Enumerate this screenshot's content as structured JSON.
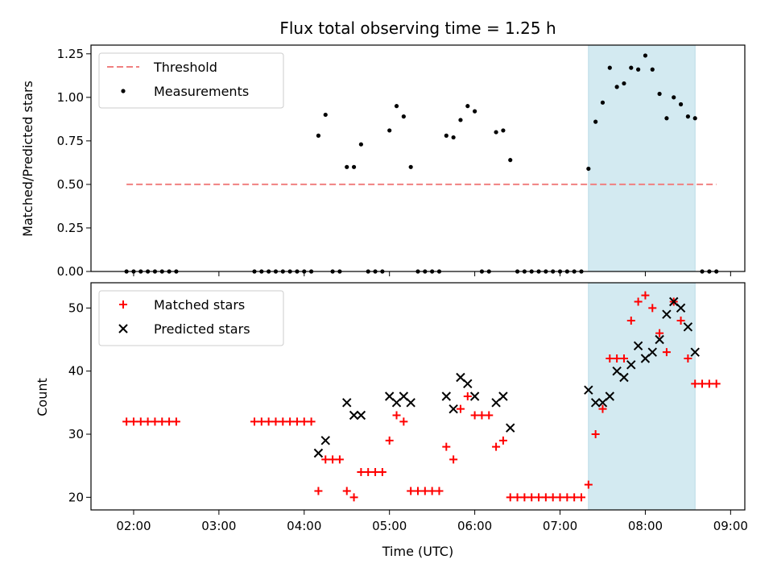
{
  "chart_data": [
    {
      "type": "scatter",
      "title": "Flux total observing time = 1.25 h",
      "xlabel": "",
      "ylabel": "Matched/Predicted stars",
      "xlim": [
        "01:30",
        "09:10"
      ],
      "ylim": [
        0,
        1.3
      ],
      "yticks": [
        "0.00",
        "0.25",
        "0.50",
        "0.75",
        "1.00",
        "1.25"
      ],
      "highlight_span": {
        "start": "07:20",
        "end": "08:35",
        "color": "#d3eaf1"
      },
      "legend": {
        "location": "upper-left",
        "entries": [
          "Threshold",
          "Measurements"
        ]
      },
      "series": [
        {
          "name": "Threshold",
          "style": "dashed-line",
          "color": "#f08080",
          "x": [
            "01:55",
            "08:50"
          ],
          "y": [
            0.5,
            0.5
          ]
        },
        {
          "name": "Measurements",
          "style": "dot",
          "color": "#000000",
          "x": [
            "01:55",
            "02:00",
            "02:05",
            "02:10",
            "02:15",
            "02:20",
            "02:25",
            "02:30",
            "03:25",
            "03:30",
            "03:35",
            "03:40",
            "03:45",
            "03:50",
            "03:55",
            "04:00",
            "04:05",
            "04:10",
            "04:15",
            "04:20",
            "04:25",
            "04:30",
            "04:35",
            "04:40",
            "04:45",
            "04:50",
            "04:55",
            "05:00",
            "05:05",
            "05:10",
            "05:15",
            "05:20",
            "05:25",
            "05:30",
            "05:35",
            "05:40",
            "05:45",
            "05:50",
            "05:55",
            "06:00",
            "06:05",
            "06:10",
            "06:15",
            "06:20",
            "06:25",
            "06:30",
            "06:35",
            "06:40",
            "06:45",
            "06:50",
            "06:55",
            "07:00",
            "07:05",
            "07:10",
            "07:15",
            "07:20",
            "07:25",
            "07:30",
            "07:35",
            "07:40",
            "07:45",
            "07:50",
            "07:55",
            "08:00",
            "08:05",
            "08:10",
            "08:15",
            "08:20",
            "08:25",
            "08:30",
            "08:35",
            "08:40",
            "08:45",
            "08:50"
          ],
          "y": [
            0,
            0,
            0,
            0,
            0,
            0,
            0,
            0,
            0,
            0,
            0,
            0,
            0,
            0,
            0,
            0,
            0,
            0.78,
            0.9,
            0,
            0,
            0.6,
            0.6,
            0.73,
            0,
            0,
            0,
            0.81,
            0.95,
            0.89,
            0.6,
            0,
            0,
            0,
            0,
            0.78,
            0.77,
            0.87,
            0.95,
            0.92,
            0,
            0,
            0.8,
            0.81,
            0.64,
            0,
            0,
            0,
            0,
            0,
            0,
            0,
            0,
            0,
            0,
            0.59,
            0.86,
            0.97,
            1.17,
            1.06,
            1.08,
            1.17,
            1.16,
            1.24,
            1.16,
            1.02,
            0.88,
            1.0,
            0.96,
            0.89,
            0.88,
            0,
            0,
            0
          ]
        }
      ]
    },
    {
      "type": "scatter",
      "title": "",
      "xlabel": "Time (UTC)",
      "ylabel": "Count",
      "xticks": [
        "02:00",
        "03:00",
        "04:00",
        "05:00",
        "06:00",
        "07:00",
        "08:00",
        "09:00"
      ],
      "xlim": [
        "01:30",
        "09:10"
      ],
      "ylim": [
        18,
        54
      ],
      "yticks": [
        "20",
        "30",
        "40",
        "50"
      ],
      "highlight_span": {
        "start": "07:20",
        "end": "08:35",
        "color": "#d3eaf1"
      },
      "legend": {
        "location": "upper-left",
        "entries": [
          "Matched stars",
          "Predicted stars"
        ]
      },
      "series": [
        {
          "name": "Matched stars",
          "marker": "plus",
          "color": "#ff0000",
          "x": [
            "01:55",
            "02:00",
            "02:05",
            "02:10",
            "02:15",
            "02:20",
            "02:25",
            "02:30",
            "03:25",
            "03:30",
            "03:35",
            "03:40",
            "03:45",
            "03:50",
            "03:55",
            "04:00",
            "04:05",
            "04:10",
            "04:15",
            "04:20",
            "04:25",
            "04:30",
            "04:35",
            "04:40",
            "04:45",
            "04:50",
            "04:55",
            "05:00",
            "05:05",
            "05:10",
            "05:15",
            "05:20",
            "05:25",
            "05:30",
            "05:35",
            "05:40",
            "05:45",
            "05:50",
            "05:55",
            "06:00",
            "06:05",
            "06:10",
            "06:15",
            "06:20",
            "06:25",
            "06:30",
            "06:35",
            "06:40",
            "06:45",
            "06:50",
            "06:55",
            "07:00",
            "07:05",
            "07:10",
            "07:15",
            "07:20",
            "07:25",
            "07:30",
            "07:35",
            "07:40",
            "07:45",
            "07:50",
            "07:55",
            "08:00",
            "08:05",
            "08:10",
            "08:15",
            "08:20",
            "08:25",
            "08:30",
            "08:35",
            "08:40",
            "08:45",
            "08:50"
          ],
          "y": [
            32,
            32,
            32,
            32,
            32,
            32,
            32,
            32,
            32,
            32,
            32,
            32,
            32,
            32,
            32,
            32,
            32,
            21,
            26,
            26,
            26,
            21,
            20,
            24,
            24,
            24,
            24,
            29,
            33,
            32,
            21,
            21,
            21,
            21,
            21,
            28,
            26,
            34,
            36,
            33,
            33,
            33,
            28,
            29,
            20,
            20,
            20,
            20,
            20,
            20,
            20,
            20,
            20,
            20,
            20,
            22,
            30,
            34,
            42,
            42,
            42,
            48,
            51,
            52,
            50,
            46,
            43,
            51,
            48,
            42,
            38,
            38,
            38,
            38
          ]
        },
        {
          "name": "Predicted stars",
          "marker": "x",
          "color": "#000000",
          "x": [
            "04:10",
            "04:15",
            "04:30",
            "04:35",
            "04:40",
            "05:00",
            "05:05",
            "05:10",
            "05:15",
            "05:40",
            "05:45",
            "05:50",
            "05:55",
            "06:00",
            "06:15",
            "06:20",
            "06:25",
            "07:20",
            "07:25",
            "07:30",
            "07:35",
            "07:40",
            "07:45",
            "07:50",
            "07:55",
            "08:00",
            "08:05",
            "08:10",
            "08:15",
            "08:20",
            "08:25",
            "08:30",
            "08:35"
          ],
          "y": [
            27,
            29,
            35,
            33,
            33,
            36,
            35,
            36,
            35,
            36,
            34,
            39,
            38,
            36,
            35,
            36,
            31,
            37,
            35,
            35,
            36,
            40,
            39,
            41,
            44,
            42,
            43,
            45,
            49,
            51,
            50,
            47,
            43
          ]
        }
      ]
    }
  ]
}
